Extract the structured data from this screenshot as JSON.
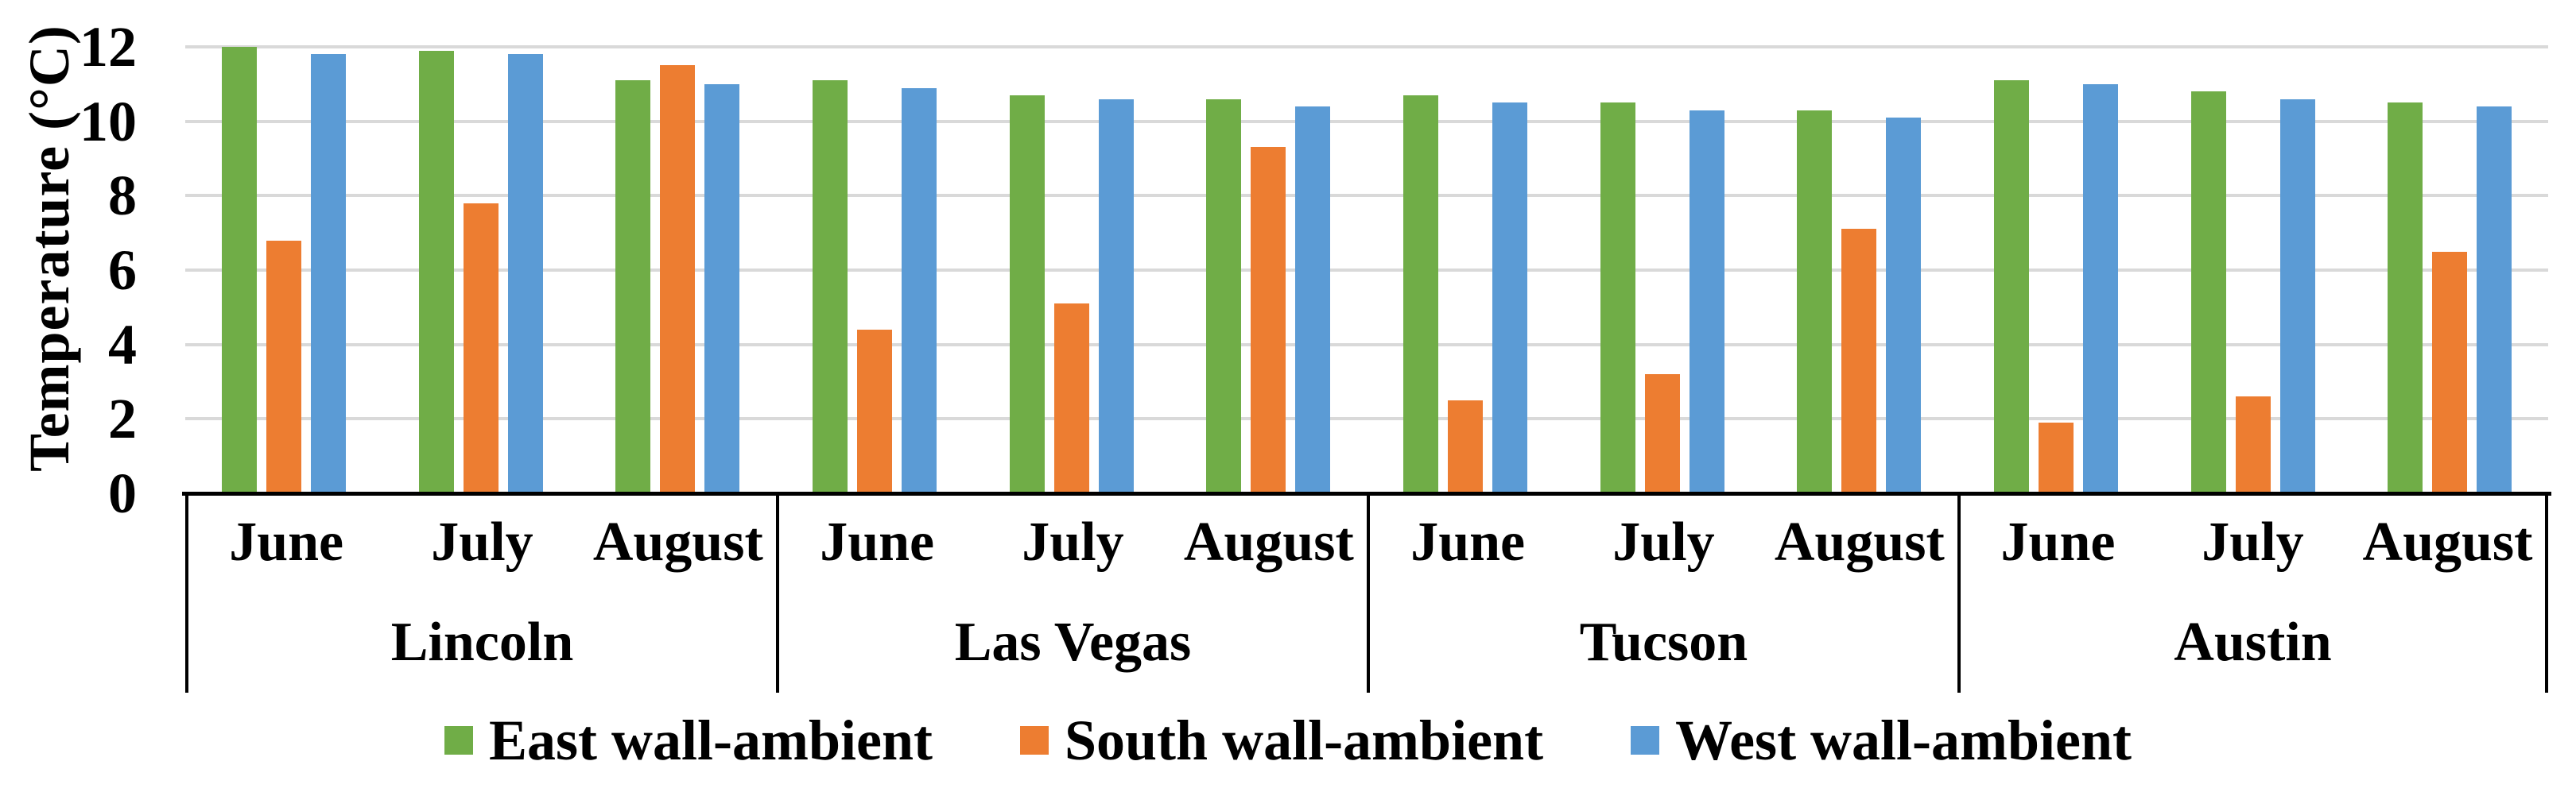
{
  "chart_data": {
    "type": "bar",
    "title": "",
    "ylabel": "Temperature (°C)",
    "ylim": [
      0,
      12
    ],
    "yticks": [
      0,
      2,
      4,
      6,
      8,
      10,
      12
    ],
    "grid": true,
    "legend_position": "bottom",
    "groups": [
      "Lincoln",
      "Las Vegas",
      "Tucson",
      "Austin"
    ],
    "months": [
      "June",
      "July",
      "August"
    ],
    "series": [
      {
        "name": "East wall-ambient",
        "color": "#70AD47",
        "values": [
          [
            12.0,
            11.9,
            11.1
          ],
          [
            11.1,
            10.7,
            10.6
          ],
          [
            10.7,
            10.5,
            10.3
          ],
          [
            11.1,
            10.8,
            10.5
          ]
        ]
      },
      {
        "name": "South wall-ambient",
        "color": "#ED7D31",
        "values": [
          [
            6.8,
            7.8,
            11.5
          ],
          [
            4.4,
            5.1,
            9.3
          ],
          [
            2.5,
            3.2,
            7.1
          ],
          [
            1.9,
            2.6,
            6.5
          ]
        ]
      },
      {
        "name": "West wall-ambient",
        "color": "#5B9BD5",
        "values": [
          [
            11.8,
            11.8,
            11.0
          ],
          [
            10.9,
            10.6,
            10.4
          ],
          [
            10.5,
            10.3,
            10.1
          ],
          [
            11.0,
            10.6,
            10.4
          ]
        ]
      }
    ],
    "style": {
      "gridline_color": "#D9D9D9",
      "axis_color": "#000000",
      "background": "#FFFFFF"
    }
  }
}
